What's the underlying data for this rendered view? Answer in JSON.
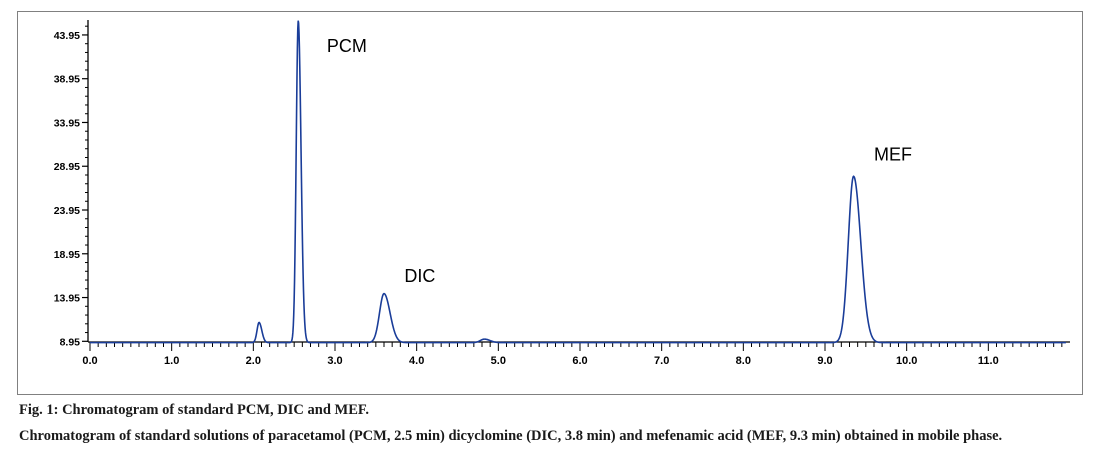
{
  "figure": {
    "caption_title": "Fig. 1: Chromatogram of standard PCM, DIC and MEF.",
    "caption_body": "Chromatogram of standard solutions of paracetamol (PCM, 2.5 min) dicyclomine (DIC, 3.8 min) and mefenamic acid (MEF, 9.3 min) obtained in mobile phase."
  },
  "chart_data": {
    "type": "line",
    "title": "",
    "xlabel": "",
    "ylabel": "",
    "xlim": [
      0.0,
      12.0
    ],
    "ylim": [
      7.5,
      46.0
    ],
    "x_ticks": [
      0.0,
      1.0,
      2.0,
      3.0,
      4.0,
      5.0,
      6.0,
      7.0,
      8.0,
      9.0,
      10.0,
      11.0
    ],
    "x_tick_labels": [
      "0.0",
      "1.0",
      "2.0",
      "3.0",
      "4.0",
      "5.0",
      "6.0",
      "7.0",
      "8.0",
      "9.0",
      "10.0",
      "11.0"
    ],
    "y_ticks": [
      8.95,
      13.95,
      18.95,
      23.95,
      28.95,
      33.95,
      38.95,
      43.95
    ],
    "y_tick_labels": [
      "8.95",
      "13.95",
      "18.95",
      "23.95",
      "28.95",
      "33.95",
      "38.95",
      "43.95"
    ],
    "grid": false,
    "line_color": "#1a3d99",
    "series": [
      {
        "name": "",
        "baseline": 8.8,
        "peaks": [
          {
            "x": 2.07,
            "height": 2.3,
            "sigma": 0.025
          },
          {
            "x": 2.55,
            "height": 36.8,
            "sigma": 0.025
          },
          {
            "x": 3.6,
            "height": 5.6,
            "sigma": 0.055
          },
          {
            "x": 4.83,
            "height": 0.4,
            "sigma": 0.05
          },
          {
            "x": 9.35,
            "height": 19.0,
            "sigma": 0.065
          }
        ]
      }
    ],
    "annotations": [
      {
        "text": "PCM",
        "x": 2.9,
        "y": 42.0
      },
      {
        "text": "DIC",
        "x": 3.85,
        "y": 15.7
      },
      {
        "text": "MEF",
        "x": 9.6,
        "y": 29.6
      }
    ]
  }
}
